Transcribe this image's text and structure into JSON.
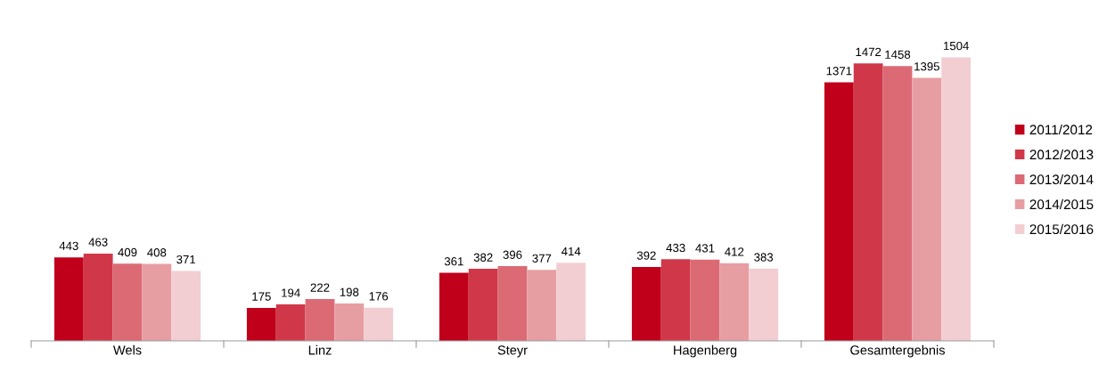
{
  "chart_data": {
    "type": "bar",
    "categories": [
      "Wels",
      "Linz",
      "Steyr",
      "Hagenberg",
      "Gesamtergebnis"
    ],
    "series": [
      {
        "name": "2011/2012",
        "color": "#c0001a",
        "values": [
          443,
          175,
          361,
          392,
          1371
        ]
      },
      {
        "name": "2012/2013",
        "color": "#d0384a",
        "values": [
          463,
          194,
          382,
          433,
          1472
        ]
      },
      {
        "name": "2013/2014",
        "color": "#dc6a74",
        "values": [
          409,
          222,
          396,
          431,
          1458
        ]
      },
      {
        "name": "2014/2015",
        "color": "#e79ea3",
        "values": [
          408,
          198,
          377,
          412,
          1395
        ]
      },
      {
        "name": "2015/2016",
        "color": "#f2ced2",
        "values": [
          371,
          176,
          414,
          383,
          1504
        ]
      }
    ],
    "data_labels": true,
    "legend": "right",
    "tick_labels": "x",
    "grid": false
  }
}
